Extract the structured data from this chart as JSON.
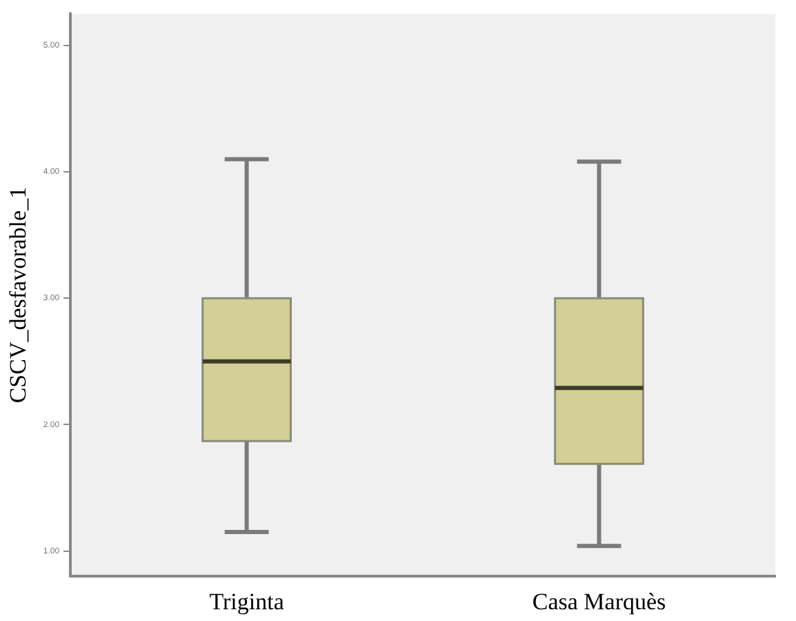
{
  "chart_data": {
    "type": "box",
    "ylabel": "CSCV_desfavorable_1",
    "categories": [
      "Triginta",
      "Casa Marquès"
    ],
    "boxes": [
      {
        "low": 1.15,
        "q1": 1.87,
        "median": 2.5,
        "q3": 3.0,
        "high": 4.1
      },
      {
        "low": 1.04,
        "q1": 1.69,
        "median": 2.29,
        "q3": 3.0,
        "high": 4.08
      }
    ],
    "color": "#d3cf95",
    "ylim": [
      0.8,
      5.25
    ],
    "yticks": [
      {
        "value": 1,
        "label": "1.00"
      },
      {
        "value": 2,
        "label": "2.00"
      },
      {
        "value": 3,
        "label": "3.00"
      },
      {
        "value": 4,
        "label": "4.00"
      },
      {
        "value": 5,
        "label": "5.00"
      }
    ],
    "grid": false,
    "legend": false
  }
}
